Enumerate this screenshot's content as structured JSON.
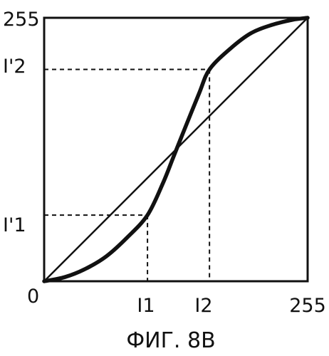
{
  "figure": {
    "y_axis_labels": {
      "top": "255",
      "i2_prime": "I'2",
      "i1_prime": "I'1"
    },
    "x_axis_labels": {
      "origin": "0",
      "i1": "I1",
      "i2": "I2",
      "end": "255"
    },
    "caption": "ФИГ. 8В"
  },
  "chart_data": {
    "type": "line",
    "title": "",
    "xlabel": "",
    "ylabel": "",
    "xlim": [
      0,
      255
    ],
    "ylim": [
      0,
      255
    ],
    "grid": false,
    "series": [
      {
        "name": "",
        "style": "thin",
        "x": [
          0,
          255
        ],
        "y": [
          0,
          255
        ]
      },
      {
        "name": "",
        "style": "thick",
        "x": [
          0,
          20,
          40,
          60,
          80,
          100,
          115,
          125,
          135,
          150,
          160,
          180,
          200,
          220,
          240,
          255
        ],
        "y": [
          0,
          4,
          12,
          24,
          42,
          64,
          95,
          120,
          145,
          182,
          205,
          225,
          240,
          248,
          253,
          255
        ]
      }
    ],
    "reference_points": [
      {
        "label": "I1",
        "x": 100,
        "y": 64
      },
      {
        "label": "I2",
        "x": 160,
        "y": 205
      }
    ],
    "colors": {
      "line": "#111111"
    }
  }
}
